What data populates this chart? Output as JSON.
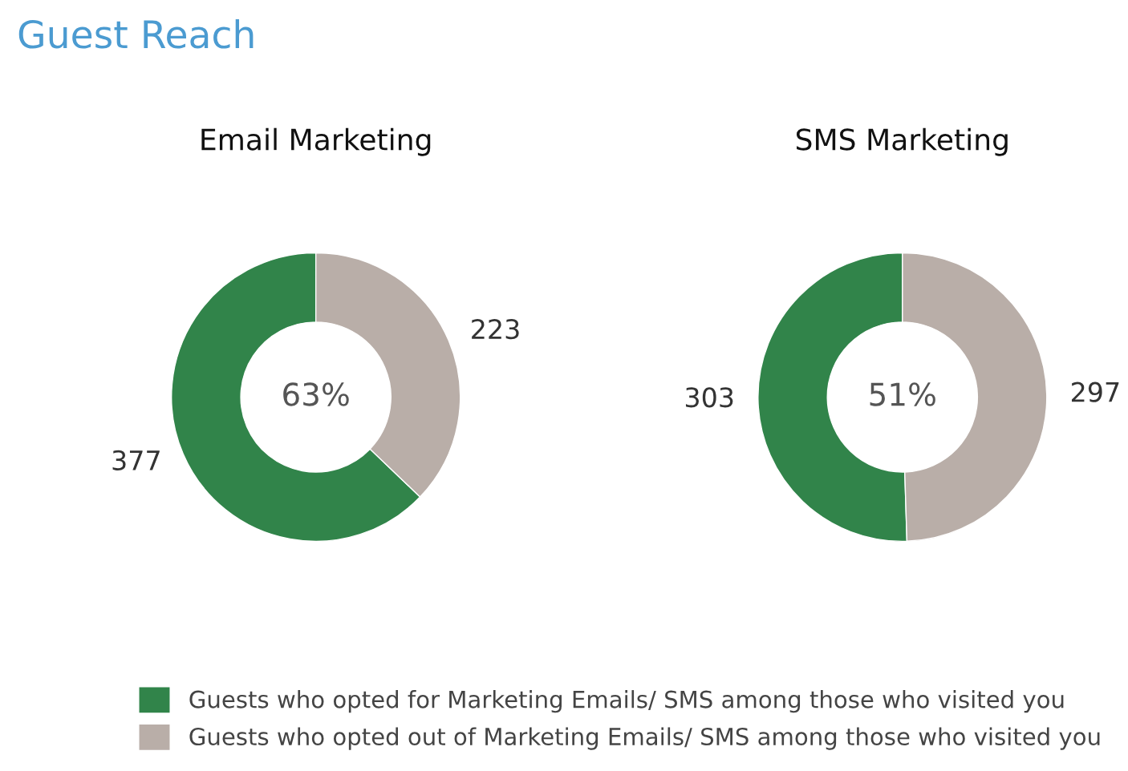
{
  "chart_data": [
    {
      "type": "donut",
      "title": "Email Marketing",
      "categories": [
        "Guests who opted for Marketing Emails/ SMS among those who visited you",
        "Guests who opted out of Marketing Emails/ SMS among those who visited you"
      ],
      "values": [
        377,
        223
      ],
      "colors": [
        "#31844a",
        "#b9aea8"
      ],
      "data_labels": true,
      "legend": "bottom",
      "annotations": [
        "Guest Reach",
        "63%"
      ]
    },
    {
      "type": "donut",
      "title": "SMS Marketing",
      "categories": [
        null,
        null
      ],
      "values": [
        303,
        297
      ],
      "colors": [
        "#31844a",
        "#b9aea8"
      ],
      "data_labels": true,
      "annotations": [
        "51%"
      ]
    }
  ]
}
